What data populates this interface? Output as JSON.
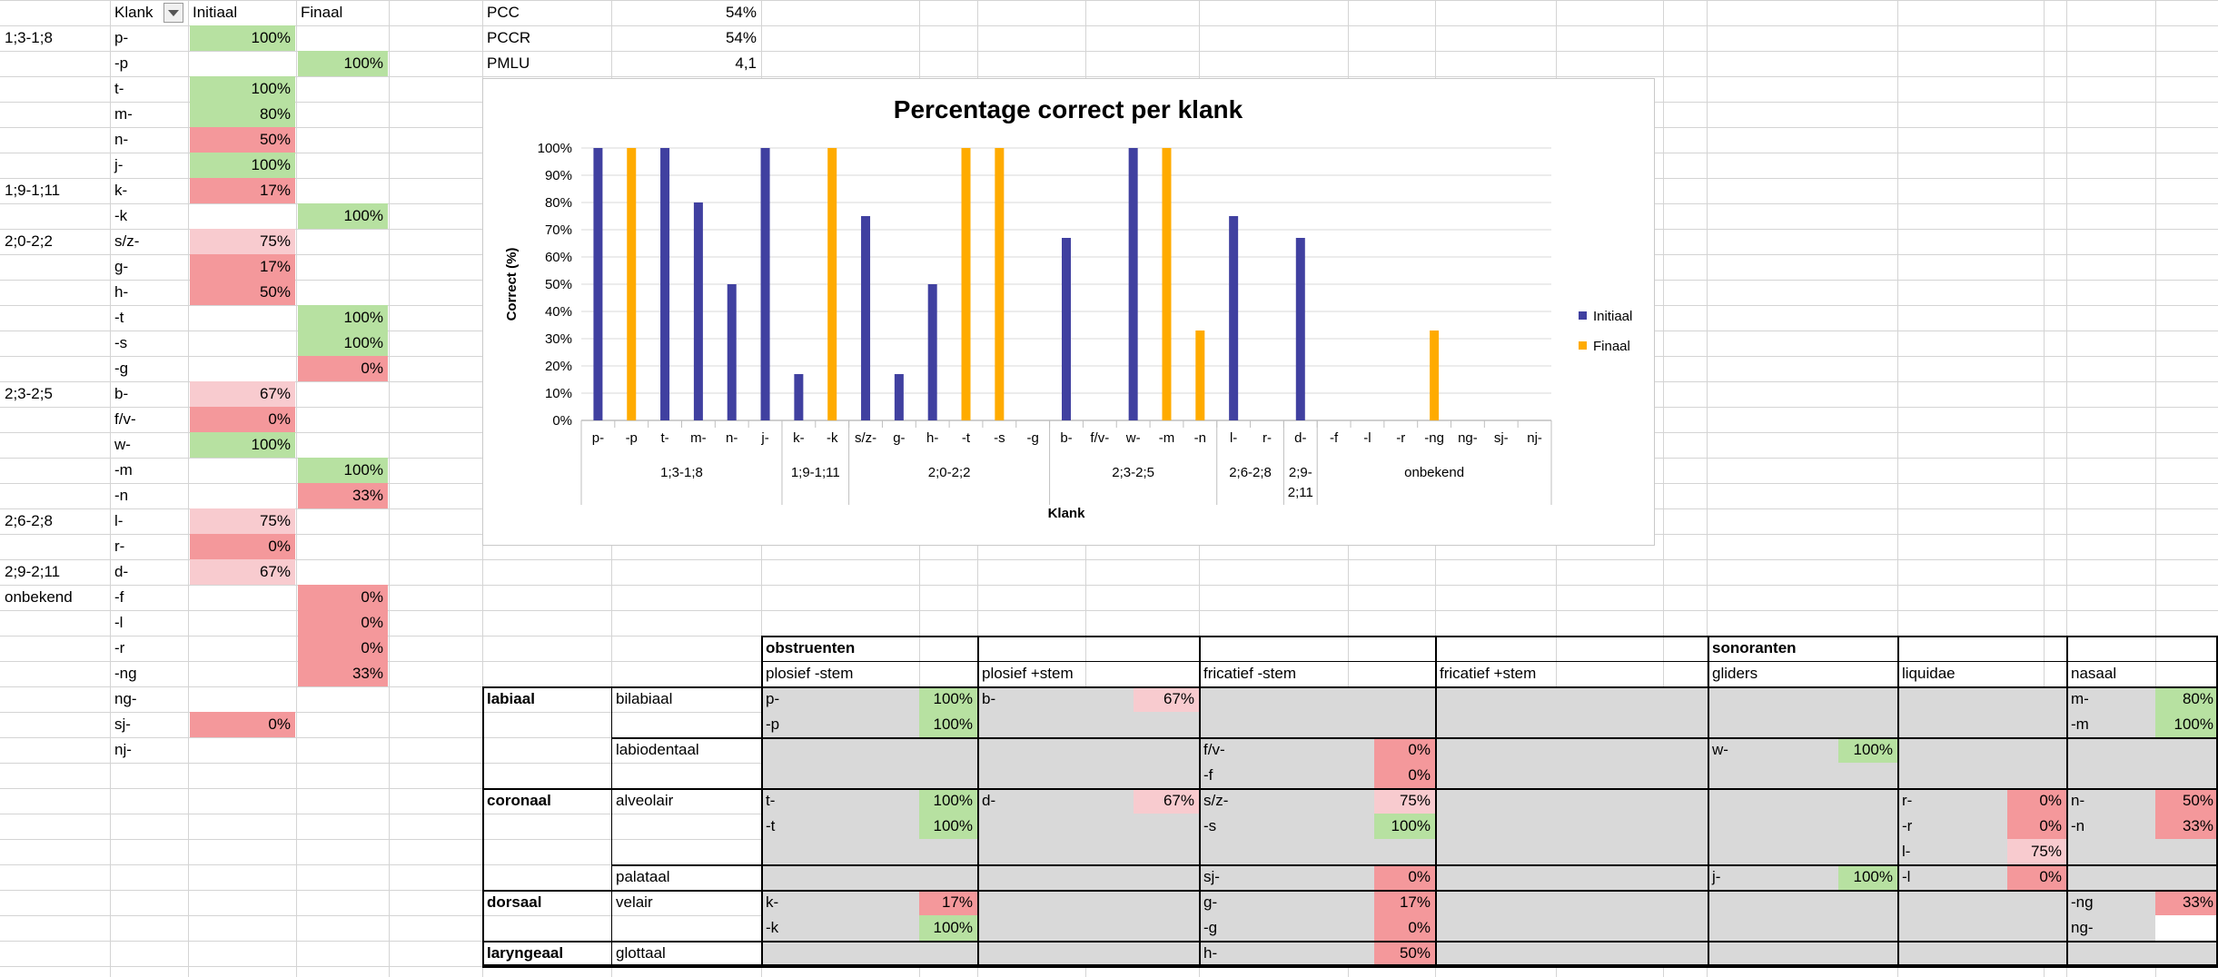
{
  "colors": {
    "green": "#b7e1a1",
    "pink_light": "#f8cbcf",
    "pink": "#f4989b",
    "shade": "#d9d9d9",
    "initiaal": "#4040a0",
    "finaal": "#ffab00"
  },
  "left_table": {
    "headers": [
      "Klank",
      "Initiaal",
      "Finaal"
    ],
    "rows": [
      {
        "age": "1;3-1;8",
        "klank": "p-",
        "ini": "100%",
        "ini_c": "green",
        "fin": "",
        "fin_c": ""
      },
      {
        "age": "",
        "klank": "-p",
        "ini": "",
        "ini_c": "",
        "fin": "100%",
        "fin_c": "green"
      },
      {
        "age": "",
        "klank": "t-",
        "ini": "100%",
        "ini_c": "green",
        "fin": "",
        "fin_c": ""
      },
      {
        "age": "",
        "klank": "m-",
        "ini": "80%",
        "ini_c": "green",
        "fin": "",
        "fin_c": ""
      },
      {
        "age": "",
        "klank": "n-",
        "ini": "50%",
        "ini_c": "pink",
        "fin": "",
        "fin_c": ""
      },
      {
        "age": "",
        "klank": "j-",
        "ini": "100%",
        "ini_c": "green",
        "fin": "",
        "fin_c": ""
      },
      {
        "age": "1;9-1;11",
        "klank": "k-",
        "ini": "17%",
        "ini_c": "pink",
        "fin": "",
        "fin_c": ""
      },
      {
        "age": "",
        "klank": "-k",
        "ini": "",
        "ini_c": "",
        "fin": "100%",
        "fin_c": "green"
      },
      {
        "age": "2;0-2;2",
        "klank": "s/z-",
        "ini": "75%",
        "ini_c": "pink_light",
        "fin": "",
        "fin_c": ""
      },
      {
        "age": "",
        "klank": "g-",
        "ini": "17%",
        "ini_c": "pink",
        "fin": "",
        "fin_c": ""
      },
      {
        "age": "",
        "klank": "h-",
        "ini": "50%",
        "ini_c": "pink",
        "fin": "",
        "fin_c": ""
      },
      {
        "age": "",
        "klank": "-t",
        "ini": "",
        "ini_c": "",
        "fin": "100%",
        "fin_c": "green"
      },
      {
        "age": "",
        "klank": "-s",
        "ini": "",
        "ini_c": "",
        "fin": "100%",
        "fin_c": "green"
      },
      {
        "age": "",
        "klank": "-g",
        "ini": "",
        "ini_c": "",
        "fin": "0%",
        "fin_c": "pink"
      },
      {
        "age": "2;3-2;5",
        "klank": "b-",
        "ini": "67%",
        "ini_c": "pink_light",
        "fin": "",
        "fin_c": ""
      },
      {
        "age": "",
        "klank": "f/v-",
        "ini": "0%",
        "ini_c": "pink",
        "fin": "",
        "fin_c": ""
      },
      {
        "age": "",
        "klank": "w-",
        "ini": "100%",
        "ini_c": "green",
        "fin": "",
        "fin_c": ""
      },
      {
        "age": "",
        "klank": "-m",
        "ini": "",
        "ini_c": "",
        "fin": "100%",
        "fin_c": "green"
      },
      {
        "age": "",
        "klank": "-n",
        "ini": "",
        "ini_c": "",
        "fin": "33%",
        "fin_c": "pink"
      },
      {
        "age": "2;6-2;8",
        "klank": "l-",
        "ini": "75%",
        "ini_c": "pink_light",
        "fin": "",
        "fin_c": ""
      },
      {
        "age": "",
        "klank": "r-",
        "ini": "0%",
        "ini_c": "pink",
        "fin": "",
        "fin_c": ""
      },
      {
        "age": "2;9-2;11",
        "klank": "d-",
        "ini": "67%",
        "ini_c": "pink_light",
        "fin": "",
        "fin_c": ""
      },
      {
        "age": "onbekend",
        "klank": "-f",
        "ini": "",
        "ini_c": "",
        "fin": "0%",
        "fin_c": "pink"
      },
      {
        "age": "",
        "klank": "-l",
        "ini": "",
        "ini_c": "",
        "fin": "0%",
        "fin_c": "pink"
      },
      {
        "age": "",
        "klank": "-r",
        "ini": "",
        "ini_c": "",
        "fin": "0%",
        "fin_c": "pink"
      },
      {
        "age": "",
        "klank": "-ng",
        "ini": "",
        "ini_c": "",
        "fin": "33%",
        "fin_c": "pink"
      },
      {
        "age": "",
        "klank": "ng-",
        "ini": "",
        "ini_c": "",
        "fin": "",
        "fin_c": ""
      },
      {
        "age": "",
        "klank": "sj-",
        "ini": "0%",
        "ini_c": "pink",
        "fin": "",
        "fin_c": ""
      },
      {
        "age": "",
        "klank": "nj-",
        "ini": "",
        "ini_c": "",
        "fin": "",
        "fin_c": ""
      }
    ]
  },
  "metrics": [
    {
      "label": "PCC",
      "value": "54%"
    },
    {
      "label": "PCCR",
      "value": "54%"
    },
    {
      "label": "PMLU",
      "value": "4,1"
    }
  ],
  "chart_data": {
    "type": "bar",
    "title": "Percentage correct per klank",
    "xlabel": "Klank",
    "ylabel": "Correct (%)",
    "ylim": [
      0,
      100
    ],
    "yticks": [
      "0%",
      "10%",
      "20%",
      "30%",
      "40%",
      "50%",
      "60%",
      "70%",
      "80%",
      "90%",
      "100%"
    ],
    "categories": [
      "p-",
      "-p",
      "t-",
      "m-",
      "n-",
      "j-",
      "k-",
      "-k",
      "s/z-",
      "g-",
      "h-",
      "-t",
      "-s",
      "-g",
      "b-",
      "f/v-",
      "w-",
      "-m",
      "-n",
      "l-",
      "r-",
      "d-",
      "-f",
      "-l",
      "-r",
      "-ng",
      "ng-",
      "sj-",
      "nj-"
    ],
    "groups": [
      {
        "label": "1;3-1;8",
        "count": 6
      },
      {
        "label": "1;9-1;11",
        "count": 2
      },
      {
        "label": "2;0-2;2",
        "count": 6
      },
      {
        "label": "2;3-2;5",
        "count": 5
      },
      {
        "label": "2;6-2;8",
        "count": 2
      },
      {
        "label": "2;9-2;11",
        "count": 1
      },
      {
        "label": "onbekend",
        "count": 7
      }
    ],
    "series": [
      {
        "name": "Initiaal",
        "values": [
          100,
          null,
          100,
          80,
          50,
          100,
          17,
          null,
          75,
          17,
          50,
          null,
          null,
          null,
          67,
          0,
          100,
          null,
          null,
          75,
          0,
          67,
          null,
          null,
          null,
          null,
          null,
          0,
          null
        ]
      },
      {
        "name": "Finaal",
        "values": [
          null,
          100,
          null,
          null,
          null,
          null,
          null,
          100,
          null,
          null,
          null,
          100,
          100,
          0,
          null,
          null,
          null,
          100,
          33,
          null,
          null,
          null,
          0,
          0,
          0,
          33,
          null,
          null,
          null
        ]
      }
    ],
    "legend_position": "right",
    "grid": true
  },
  "bottom_table": {
    "obstruenten": "obstruenten",
    "sonoranten": "sonoranten",
    "subheaders": [
      "plosief -stem",
      "plosief +stem",
      "fricatief -stem",
      "fricatief +stem",
      "gliders",
      "liquidae",
      "nasaal"
    ],
    "place_labels": {
      "labiaal": "labiaal",
      "coronaal": "coronaal",
      "dorsaal": "dorsaal",
      "laryngeaal": "laryngeaal"
    },
    "sub_places": {
      "bilabiaal": "bilabiaal",
      "labiodentaal": "labiodentaal",
      "alveolair": "alveolair",
      "palataal": "palataal",
      "velair": "velair",
      "glottaal": "glottaal"
    },
    "cells": [
      {
        "row": 0,
        "col": 0,
        "k": "p-",
        "v": "100%",
        "c": "green"
      },
      {
        "row": 0,
        "col": 1,
        "k": "b-",
        "v": "67%",
        "c": "pink_light"
      },
      {
        "row": 0,
        "col": 6,
        "k": "m-",
        "v": "80%",
        "c": "green"
      },
      {
        "row": 1,
        "col": 0,
        "k": "-p",
        "v": "100%",
        "c": "green"
      },
      {
        "row": 1,
        "col": 6,
        "k": "-m",
        "v": "100%",
        "c": "green"
      },
      {
        "row": 2,
        "col": 2,
        "k": "f/v-",
        "v": "0%",
        "c": "pink"
      },
      {
        "row": 2,
        "col": 4,
        "k": "w-",
        "v": "100%",
        "c": "green"
      },
      {
        "row": 3,
        "col": 2,
        "k": "-f",
        "v": "0%",
        "c": "pink"
      },
      {
        "row": 4,
        "col": 0,
        "k": "t-",
        "v": "100%",
        "c": "green"
      },
      {
        "row": 4,
        "col": 1,
        "k": "d-",
        "v": "67%",
        "c": "pink_light"
      },
      {
        "row": 4,
        "col": 2,
        "k": "s/z-",
        "v": "75%",
        "c": "pink_light"
      },
      {
        "row": 4,
        "col": 5,
        "k": "r-",
        "v": "0%",
        "c": "pink"
      },
      {
        "row": 4,
        "col": 6,
        "k": "n-",
        "v": "50%",
        "c": "pink"
      },
      {
        "row": 5,
        "col": 0,
        "k": "-t",
        "v": "100%",
        "c": "green"
      },
      {
        "row": 5,
        "col": 2,
        "k": "-s",
        "v": "100%",
        "c": "green"
      },
      {
        "row": 5,
        "col": 5,
        "k": "-r",
        "v": "0%",
        "c": "pink"
      },
      {
        "row": 5,
        "col": 6,
        "k": "-n",
        "v": "33%",
        "c": "pink"
      },
      {
        "row": 6,
        "col": 5,
        "k": "l-",
        "v": "75%",
        "c": "pink_light"
      },
      {
        "row": 7,
        "col": 2,
        "k": "sj-",
        "v": "0%",
        "c": "pink"
      },
      {
        "row": 7,
        "col": 4,
        "k": "j-",
        "v": "100%",
        "c": "green"
      },
      {
        "row": 7,
        "col": 5,
        "k": "-l",
        "v": "0%",
        "c": "pink"
      },
      {
        "row": 8,
        "col": 0,
        "k": "k-",
        "v": "17%",
        "c": "pink"
      },
      {
        "row": 8,
        "col": 2,
        "k": "g-",
        "v": "17%",
        "c": "pink"
      },
      {
        "row": 8,
        "col": 6,
        "k": "-ng",
        "v": "33%",
        "c": "pink"
      },
      {
        "row": 9,
        "col": 0,
        "k": "-k",
        "v": "100%",
        "c": "green"
      },
      {
        "row": 9,
        "col": 2,
        "k": "-g",
        "v": "0%",
        "c": "pink"
      },
      {
        "row": 9,
        "col": 6,
        "k": "ng-",
        "v": "",
        "c": "white"
      },
      {
        "row": 10,
        "col": 2,
        "k": "h-",
        "v": "50%",
        "c": "pink"
      }
    ]
  }
}
